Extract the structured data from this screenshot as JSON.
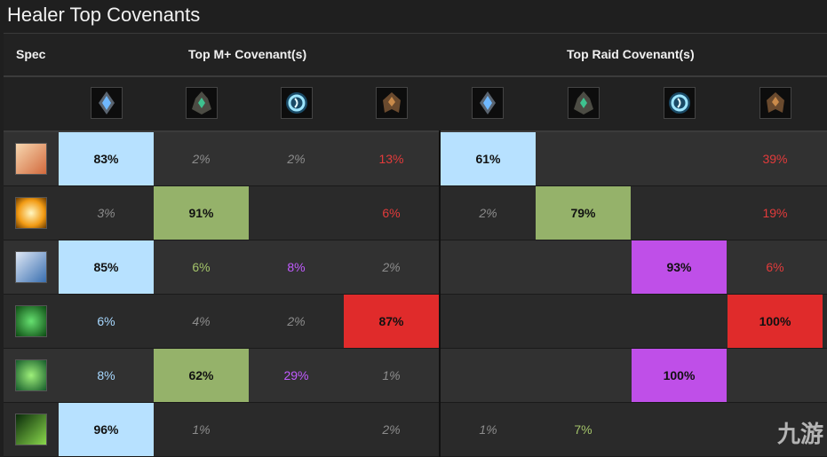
{
  "title": "Healer Top Covenants",
  "headers": {
    "spec": "Spec",
    "mplus": "Top M+ Covenant(s)",
    "raid": "Top Raid Covenant(s)"
  },
  "covenant_icons": [
    "kyrian-icon",
    "necrolord-icon",
    "night-fae-icon",
    "venthyr-icon"
  ],
  "colors": {
    "kyrian": "#b7e1ff",
    "necrolord": "#95b26a",
    "night_fae": "#bf4fe8",
    "venthyr": "#e02b2b",
    "row_dark": "#2a2a2a",
    "row_light": "#313131"
  },
  "rows": [
    {
      "spec_icon": "holy-paladin-icon",
      "mplus": [
        "83%",
        "2%",
        "2%",
        "13%"
      ],
      "raid": [
        "61%",
        "",
        "",
        "39%"
      ]
    },
    {
      "spec_icon": "holy-priest-icon",
      "mplus": [
        "3%",
        "91%",
        "",
        "6%"
      ],
      "raid": [
        "2%",
        "79%",
        "",
        "19%"
      ]
    },
    {
      "spec_icon": "discipline-priest-icon",
      "mplus": [
        "85%",
        "6%",
        "8%",
        "2%"
      ],
      "raid": [
        "",
        "",
        "93%",
        "6%"
      ]
    },
    {
      "spec_icon": "mistweaver-monk-icon",
      "mplus": [
        "6%",
        "4%",
        "2%",
        "87%"
      ],
      "raid": [
        "",
        "",
        "",
        "100%"
      ]
    },
    {
      "spec_icon": "restoration-druid-icon",
      "mplus": [
        "8%",
        "62%",
        "29%",
        "1%"
      ],
      "raid": [
        "",
        "",
        "100%",
        ""
      ]
    },
    {
      "spec_icon": "restoration-shaman-icon",
      "mplus": [
        "96%",
        "1%",
        "",
        "2%"
      ],
      "raid": [
        "1%",
        "7%",
        "",
        ""
      ]
    }
  ],
  "watermark": "九游"
}
